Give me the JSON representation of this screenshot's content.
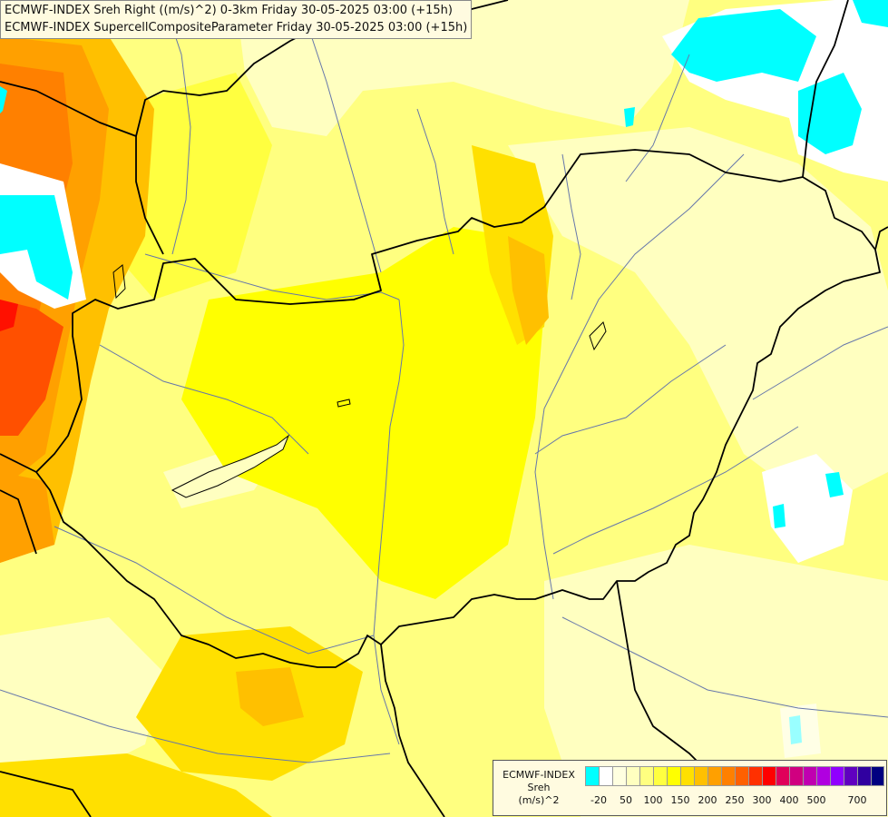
{
  "title": {
    "line1": "ECMWF-INDEX Sreh Right ((m/s)^2) 0-3km Friday 30-05-2025 03:00 (+15h)",
    "line2": "ECMWF-INDEX SupercellCompositeParameter Friday 30-05-2025 03:00 (+15h)"
  },
  "legend": {
    "model": "ECMWF-INDEX",
    "variable": "Sreh",
    "unit": "(m/s)^2",
    "colors": [
      "#00ffff",
      "#ffffff",
      "#ffffe0",
      "#ffffc0",
      "#ffff80",
      "#ffff40",
      "#ffff00",
      "#ffe000",
      "#ffc000",
      "#ffa000",
      "#ff8000",
      "#ff6000",
      "#ff3000",
      "#ff0000",
      "#e0005a",
      "#d00080",
      "#c000b0",
      "#b000e0",
      "#9000ff",
      "#6000c0",
      "#3000a0",
      "#000080"
    ],
    "tick_labels": [
      "-20",
      "50",
      "100",
      "150",
      "200",
      "250",
      "300",
      "400",
      "500",
      "700"
    ],
    "tick_swatch_index": [
      1,
      3,
      5,
      7,
      9,
      11,
      13,
      15,
      17,
      20
    ]
  },
  "palette": {
    "pale": "#ffffc0",
    "light": "#ffff80",
    "yellow": "#ffff40",
    "bright": "#ffff00",
    "gold": "#ffe000",
    "amber": "#ffc000",
    "orange": "#ffa000",
    "dark_orange": "#ff8000",
    "red_orange": "#ff5000",
    "red": "#ff1000",
    "cyan": "#00ffff",
    "white": "#ffffff",
    "border": "#000000",
    "river": "#6677aa"
  }
}
